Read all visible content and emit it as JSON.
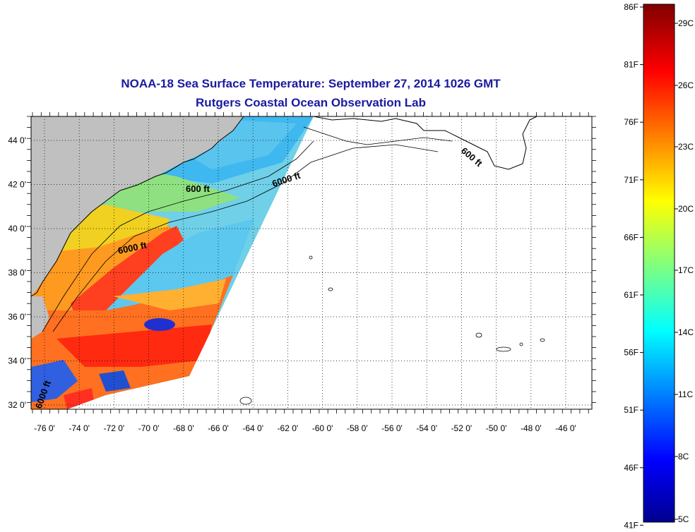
{
  "title": {
    "line1": "NOAA-18 Sea Surface Temperature:  September 27, 2014 1026 GMT",
    "line2": "Rutgers Coastal Ocean Observation Lab"
  },
  "map": {
    "lon_labels": [
      "-76 0'",
      "-74 0'",
      "-72 0'",
      "-70 0'",
      "-68 0'",
      "-66 0'",
      "-64 0'",
      "-62 0'",
      "-60 0'",
      "-58 0'",
      "-56 0'",
      "-54 0'",
      "-52 0'",
      "-50 0'",
      "-48 0'",
      "-46 0'"
    ],
    "lat_labels": [
      "44 0'",
      "42 0'",
      "40 0'",
      "38 0'",
      "36 0'",
      "34 0'",
      "32 0'"
    ],
    "contour_labels": [
      "600 ft",
      "6000 ft",
      "6000 ft",
      "600 ft",
      "6000 ft"
    ],
    "land_color": "#c0c0c0"
  },
  "colorbar": {
    "f_labels": [
      "86F",
      "81F",
      "76F",
      "71F",
      "66F",
      "61F",
      "56F",
      "51F",
      "46F",
      "41F"
    ],
    "c_labels": [
      "29C",
      "26C",
      "23C",
      "20C",
      "17C",
      "14C",
      "11C",
      "8C",
      "5C"
    ],
    "colors": [
      "#00008f",
      "#0000ff",
      "#00ffff",
      "#ffff00",
      "#ff0000",
      "#800000"
    ]
  }
}
